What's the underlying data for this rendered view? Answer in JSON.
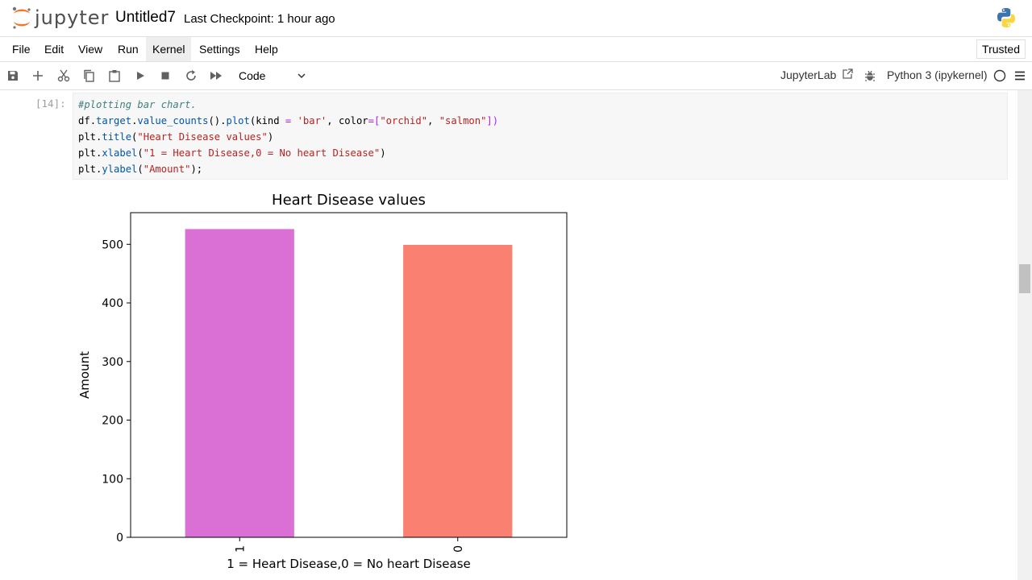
{
  "header": {
    "logo_text": "jupyter",
    "notebook_name": "Untitled7",
    "checkpoint": "Last Checkpoint: 1 hour ago"
  },
  "menu": {
    "items": [
      "File",
      "Edit",
      "View",
      "Run",
      "Kernel",
      "Settings",
      "Help"
    ],
    "active": "Kernel",
    "trusted_label": "Trusted"
  },
  "toolbar": {
    "cell_type": "Code",
    "jupyterlab_label": "JupyterLab",
    "kernel_name": "Python 3 (ipykernel)",
    "icons": [
      "save-icon",
      "add-icon",
      "cut-icon",
      "copy-icon",
      "paste-icon",
      "run-icon",
      "stop-icon",
      "restart-icon",
      "fast-forward-icon"
    ]
  },
  "cell": {
    "prompt": "[14]:",
    "code": {
      "line1": "#plotting bar chart.",
      "line2": {
        "a": "df",
        "b": ".",
        "c": "target",
        "d": ".",
        "e": "value_counts",
        "f": "()",
        "g": ".",
        "h": "plot",
        "i": "(kind ",
        "j": "=",
        "k": " ",
        "l": "'bar'",
        "m": ", color",
        "n": "=",
        "o": "[",
        "p": "\"orchid\"",
        "q": ", ",
        "r": "\"salmon\"",
        "s": "])"
      },
      "line3": {
        "a": "plt",
        "b": ".",
        "c": "title",
        "d": "(",
        "e": "\"Heart Disease values\"",
        "f": ")"
      },
      "line4": {
        "a": "plt",
        "b": ".",
        "c": "xlabel",
        "d": "(",
        "e": "\"1 = Heart Disease,0 = No heart Disease\"",
        "f": ")"
      },
      "line5": {
        "a": "plt",
        "b": ".",
        "c": "ylabel",
        "d": "(",
        "e": "\"Amount\"",
        "f": ");"
      }
    }
  },
  "chart_data": {
    "type": "bar",
    "title": "Heart Disease values",
    "xlabel": "1 = Heart Disease,0 = No heart Disease",
    "ylabel": "Amount",
    "categories": [
      "1",
      "0"
    ],
    "values": [
      526,
      499
    ],
    "colors": [
      "#da70d6",
      "#fa8072"
    ],
    "ylim": [
      0,
      554
    ],
    "yticks": [
      0,
      100,
      200,
      300,
      400,
      500
    ],
    "grid": false
  }
}
